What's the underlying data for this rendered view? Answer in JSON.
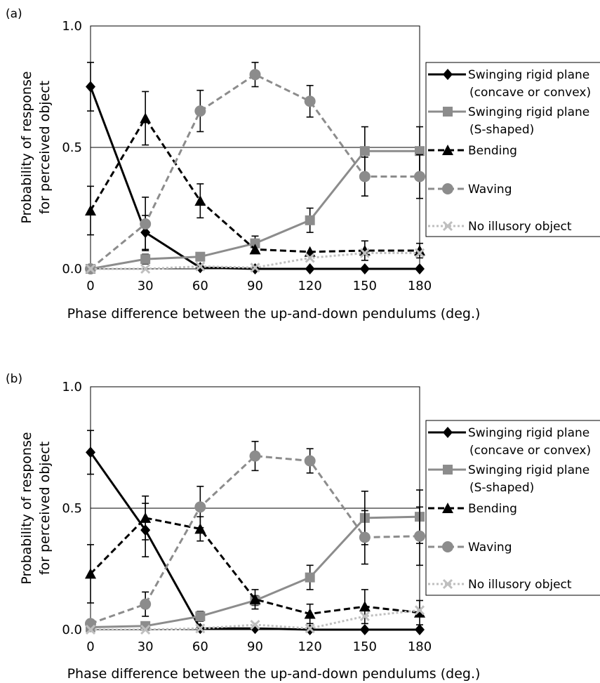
{
  "chart_data": [
    {
      "panel_label": "(a)",
      "type": "line",
      "xlabel": "Phase difference between the up-and-down pendulums (deg.)",
      "ylabel_line1": "Probability of response",
      "ylabel_line2": "for perceived object",
      "x": [
        0,
        30,
        60,
        90,
        120,
        150,
        180
      ],
      "x_tick_labels": [
        "0",
        "30",
        "60",
        "90",
        "120",
        "150",
        "180"
      ],
      "y_tick_labels": [
        "0.0",
        "0.5",
        "1.0"
      ],
      "ylim": [
        0,
        1
      ],
      "gridline_at": 0.5,
      "legend_position": "right",
      "series": [
        {
          "legend_line1": "Swinging rigid plane",
          "legend_line2": "(concave or convex)",
          "color": "#000000",
          "dash": "solid",
          "marker": "diamond",
          "values": [
            0.75,
            0.15,
            0.005,
            0.0,
            0.0,
            0.0,
            0.0
          ],
          "err": [
            0.1,
            0.07,
            0.0,
            0.0,
            0.0,
            0.0,
            0.0
          ]
        },
        {
          "legend_line1": "Swinging rigid plane",
          "legend_line2": "(S-shaped)",
          "color": "#8c8c8c",
          "dash": "solid",
          "marker": "square",
          "values": [
            0.0,
            0.04,
            0.05,
            0.105,
            0.2,
            0.485,
            0.485
          ],
          "err": [
            0.0,
            0.02,
            0.0,
            0.03,
            0.05,
            0.1,
            0.1
          ]
        },
        {
          "legend_line1": "Bending",
          "legend_line2": "",
          "color": "#000000",
          "dash": "dashed",
          "marker": "triangle",
          "values": [
            0.24,
            0.62,
            0.28,
            0.08,
            0.07,
            0.075,
            0.075
          ],
          "err": [
            0.1,
            0.11,
            0.07,
            0.0,
            0.0,
            0.04,
            0.03
          ]
        },
        {
          "legend_line1": "Waving",
          "legend_line2": "",
          "color": "#8c8c8c",
          "dash": "dashed",
          "marker": "circle",
          "values": [
            0.0,
            0.185,
            0.65,
            0.8,
            0.69,
            0.38,
            0.38
          ],
          "err": [
            0.0,
            0.11,
            0.085,
            0.05,
            0.065,
            0.08,
            0.09
          ]
        },
        {
          "legend_line1": "No illusory object",
          "legend_line2": "",
          "color": "#bfbfbf",
          "dash": "dotted",
          "marker": "x",
          "values": [
            0.0,
            0.0,
            0.01,
            0.005,
            0.045,
            0.065,
            0.065
          ],
          "err": [
            0.0,
            0.0,
            0.0,
            0.0,
            0.0,
            0.0,
            0.0
          ]
        }
      ]
    },
    {
      "panel_label": "(b)",
      "type": "line",
      "xlabel": "Phase difference between the up-and-down pendulums (deg.)",
      "ylabel_line1": "Probability of response",
      "ylabel_line2": "for perceived object",
      "x": [
        0,
        30,
        60,
        90,
        120,
        150,
        180
      ],
      "x_tick_labels": [
        "0",
        "30",
        "60",
        "90",
        "120",
        "150",
        "180"
      ],
      "y_tick_labels": [
        "0.0",
        "0.5",
        "1.0"
      ],
      "ylim": [
        0,
        1
      ],
      "gridline_at": 0.5,
      "legend_position": "right",
      "series": [
        {
          "legend_line1": "Swinging rigid plane",
          "legend_line2": "(concave or convex)",
          "color": "#000000",
          "dash": "solid",
          "marker": "diamond",
          "values": [
            0.73,
            0.41,
            0.005,
            0.005,
            0.0,
            0.0,
            0.0
          ],
          "err": [
            0.09,
            0.11,
            0.0,
            0.0,
            0.0,
            0.0,
            0.0
          ]
        },
        {
          "legend_line1": "Swinging rigid plane",
          "legend_line2": "(S-shaped)",
          "color": "#8c8c8c",
          "dash": "solid",
          "marker": "square",
          "values": [
            0.01,
            0.015,
            0.055,
            0.12,
            0.215,
            0.46,
            0.465
          ],
          "err": [
            0.0,
            0.0,
            0.02,
            0.02,
            0.05,
            0.11,
            0.11
          ]
        },
        {
          "legend_line1": "Bending",
          "legend_line2": "",
          "color": "#000000",
          "dash": "dashed",
          "marker": "triangle",
          "values": [
            0.23,
            0.46,
            0.415,
            0.125,
            0.065,
            0.095,
            0.07
          ],
          "err": [
            0.12,
            0.09,
            0.05,
            0.04,
            0.04,
            0.07,
            0.05
          ]
        },
        {
          "legend_line1": "Waving",
          "legend_line2": "",
          "color": "#8c8c8c",
          "dash": "dashed",
          "marker": "circle",
          "values": [
            0.025,
            0.105,
            0.505,
            0.715,
            0.695,
            0.38,
            0.385
          ],
          "err": [
            0.0,
            0.05,
            0.085,
            0.06,
            0.05,
            0.11,
            0.12
          ]
        },
        {
          "legend_line1": "No illusory object",
          "legend_line2": "",
          "color": "#bfbfbf",
          "dash": "dotted",
          "marker": "x",
          "values": [
            0.0,
            0.0,
            0.005,
            0.02,
            0.005,
            0.055,
            0.08
          ],
          "err": [
            0.0,
            0.0,
            0.0,
            0.0,
            0.0,
            0.0,
            0.0
          ]
        }
      ]
    }
  ]
}
